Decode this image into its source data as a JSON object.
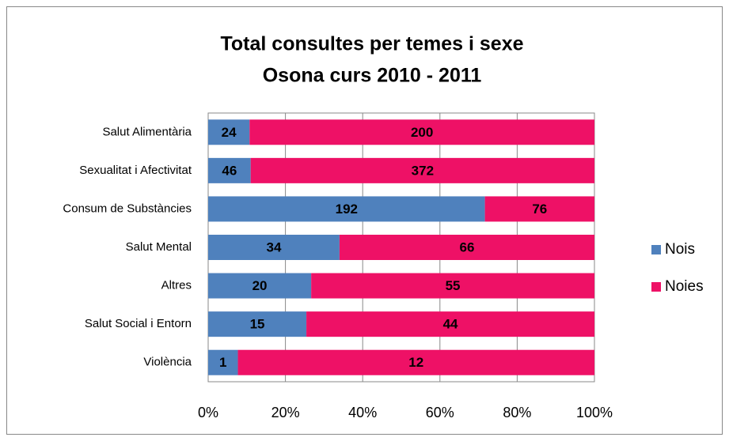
{
  "chart_data": {
    "type": "bar",
    "orientation": "horizontal",
    "stacking": "percent",
    "title": "Total consultes per temes i sexe",
    "subtitle": "Osona curs 2010 - 2011",
    "categories": [
      "Salut Alimentària",
      "Sexualitat i Afectivitat",
      "Consum de Substàncies",
      "Salut Mental",
      "Altres",
      "Salut Social i Entorn",
      "Violència"
    ],
    "series": [
      {
        "name": "Nois",
        "color": "#4f81bd",
        "values": [
          24,
          46,
          192,
          34,
          20,
          15,
          1
        ]
      },
      {
        "name": "Noies",
        "color": "#ee1166",
        "values": [
          200,
          372,
          76,
          66,
          55,
          44,
          12
        ]
      }
    ],
    "xlim": [
      0,
      100
    ],
    "xticks": [
      {
        "value": 0,
        "label": "0%"
      },
      {
        "value": 20,
        "label": "20%"
      },
      {
        "value": 40,
        "label": "40%"
      },
      {
        "value": 60,
        "label": "60%"
      },
      {
        "value": 80,
        "label": "80%"
      },
      {
        "value": 100,
        "label": "100%"
      }
    ],
    "grid": true,
    "legend": "right"
  }
}
